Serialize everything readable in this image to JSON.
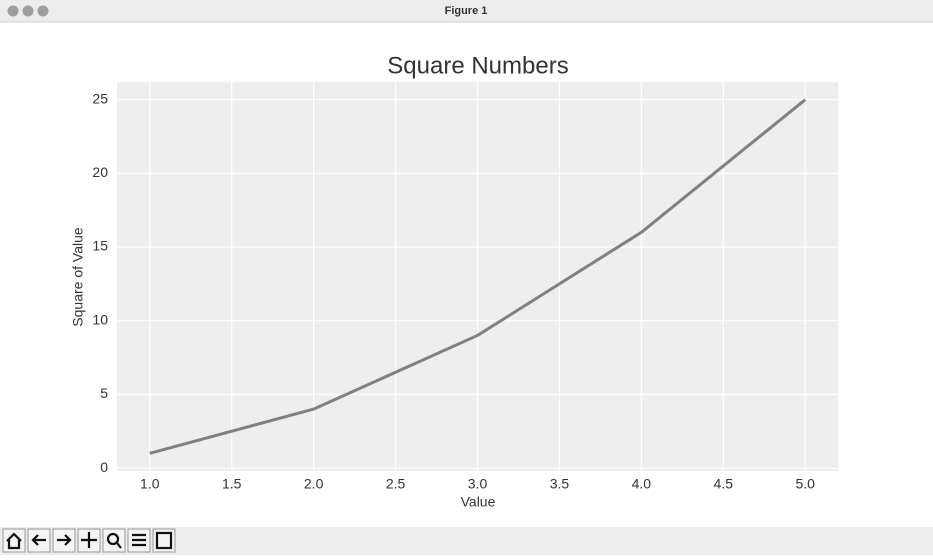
{
  "window": {
    "title": "Figure 1"
  },
  "chart_data": {
    "type": "line",
    "title": "Square Numbers",
    "x_label": "Value",
    "y_label": "Square of Value",
    "x": [
      1,
      2,
      3,
      4,
      5
    ],
    "values": [
      1,
      4,
      9,
      16,
      25
    ],
    "color": "#808080",
    "xlim": [
      0.8,
      5.2
    ],
    "ylim": [
      -0.2,
      26.2
    ],
    "xticks": [
      {
        "value": 1,
        "label": "1.0"
      },
      {
        "value": 1.5,
        "label": "1.5"
      },
      {
        "value": 2,
        "label": "2.0"
      },
      {
        "value": 2.5,
        "label": "2.5"
      },
      {
        "value": 3,
        "label": "3.0"
      },
      {
        "value": 3.5,
        "label": "3.5"
      },
      {
        "value": 4,
        "label": "4.0"
      },
      {
        "value": 4.5,
        "label": "4.5"
      },
      {
        "value": 5,
        "label": "5.0"
      }
    ],
    "yticks": [
      0,
      5,
      10,
      15,
      20,
      25
    ],
    "grid": true
  }
}
